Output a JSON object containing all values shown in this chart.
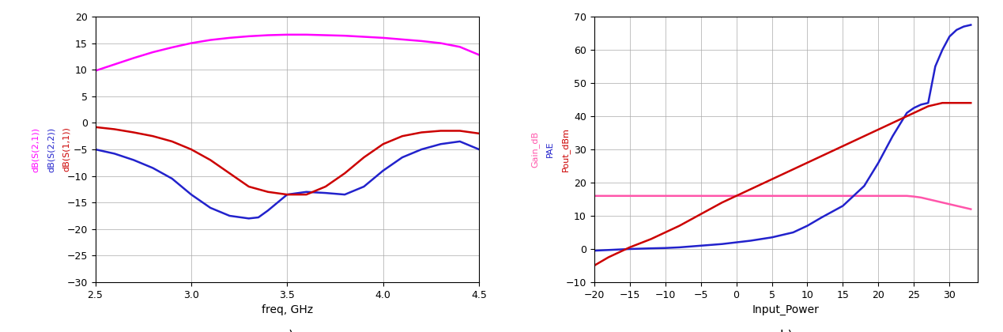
{
  "plot_a": {
    "xlabel": "freq, GHz",
    "xlim": [
      2.5,
      4.5
    ],
    "ylim": [
      -30,
      20
    ],
    "yticks": [
      -30,
      -25,
      -20,
      -15,
      -10,
      -5,
      0,
      5,
      10,
      15,
      20
    ],
    "xticks": [
      2.5,
      3.0,
      3.5,
      4.0,
      4.5
    ],
    "legend": [
      "dB(S(2,1))",
      "dB(S(2,2))",
      "dB(S(1,1))"
    ],
    "legend_colors": [
      "#ff00ff",
      "#2222cc",
      "#cc0000"
    ],
    "s21": {
      "x": [
        2.5,
        2.6,
        2.7,
        2.8,
        2.9,
        3.0,
        3.1,
        3.2,
        3.3,
        3.4,
        3.5,
        3.6,
        3.7,
        3.8,
        3.9,
        4.0,
        4.1,
        4.2,
        4.3,
        4.4,
        4.5
      ],
      "y": [
        9.8,
        11.0,
        12.2,
        13.3,
        14.2,
        15.0,
        15.6,
        16.0,
        16.3,
        16.5,
        16.6,
        16.6,
        16.5,
        16.4,
        16.2,
        16.0,
        15.7,
        15.4,
        15.0,
        14.3,
        12.8
      ],
      "color": "#ff00ff",
      "linewidth": 1.8
    },
    "s22": {
      "x": [
        2.5,
        2.6,
        2.7,
        2.8,
        2.9,
        3.0,
        3.1,
        3.2,
        3.3,
        3.35,
        3.4,
        3.5,
        3.6,
        3.7,
        3.8,
        3.9,
        4.0,
        4.1,
        4.2,
        4.3,
        4.4,
        4.5
      ],
      "y": [
        -5.0,
        -5.8,
        -7.0,
        -8.5,
        -10.5,
        -13.5,
        -16.0,
        -17.5,
        -18.0,
        -17.8,
        -16.5,
        -13.5,
        -13.0,
        -13.2,
        -13.5,
        -12.0,
        -9.0,
        -6.5,
        -5.0,
        -4.0,
        -3.5,
        -5.0
      ],
      "color": "#2222cc",
      "linewidth": 1.8
    },
    "s11": {
      "x": [
        2.5,
        2.6,
        2.7,
        2.8,
        2.9,
        3.0,
        3.1,
        3.2,
        3.3,
        3.4,
        3.5,
        3.6,
        3.7,
        3.8,
        3.9,
        4.0,
        4.1,
        4.2,
        4.3,
        4.4,
        4.5
      ],
      "y": [
        -0.8,
        -1.2,
        -1.8,
        -2.5,
        -3.5,
        -5.0,
        -7.0,
        -9.5,
        -12.0,
        -13.0,
        -13.5,
        -13.5,
        -12.0,
        -9.5,
        -6.5,
        -4.0,
        -2.5,
        -1.8,
        -1.5,
        -1.5,
        -2.0
      ],
      "color": "#cc0000",
      "linewidth": 1.8
    }
  },
  "plot_b": {
    "xlabel": "Input_Power",
    "xlim": [
      -20,
      34
    ],
    "ylim": [
      -10,
      70
    ],
    "yticks": [
      -10,
      0,
      10,
      20,
      30,
      40,
      50,
      60,
      70
    ],
    "xticks": [
      -20,
      -15,
      -10,
      -5,
      0,
      5,
      10,
      15,
      20,
      25,
      30
    ],
    "legend": [
      "Gain_dB",
      "PAE",
      "Pout_dBm"
    ],
    "legend_colors": [
      "#ff55aa",
      "#2222cc",
      "#cc0000"
    ],
    "gain": {
      "x": [
        -20,
        -18,
        -15,
        -12,
        -10,
        -8,
        -5,
        -2,
        0,
        2,
        5,
        8,
        10,
        12,
        15,
        18,
        20,
        22,
        24,
        25,
        26,
        27,
        28,
        29,
        30,
        31,
        32,
        33
      ],
      "y": [
        16.0,
        16.0,
        16.0,
        16.0,
        16.0,
        16.0,
        16.0,
        16.0,
        16.0,
        16.0,
        16.0,
        16.0,
        16.0,
        16.0,
        16.0,
        16.0,
        16.0,
        16.0,
        16.0,
        15.8,
        15.5,
        15.0,
        14.5,
        14.0,
        13.5,
        13.0,
        12.5,
        12.0
      ],
      "color": "#ff55aa",
      "linewidth": 1.8
    },
    "pae": {
      "x": [
        -20,
        -18,
        -15,
        -12,
        -10,
        -8,
        -5,
        -2,
        0,
        2,
        5,
        8,
        10,
        12,
        15,
        18,
        20,
        22,
        24,
        25,
        26,
        27,
        28,
        29,
        30,
        31,
        32,
        33
      ],
      "y": [
        -0.5,
        -0.3,
        0.0,
        0.2,
        0.3,
        0.5,
        1.0,
        1.5,
        2.0,
        2.5,
        3.5,
        5.0,
        7.0,
        9.5,
        13.0,
        19.0,
        26.0,
        34.0,
        41.0,
        42.5,
        43.5,
        44.0,
        55.0,
        60.0,
        64.0,
        66.0,
        67.0,
        67.5
      ],
      "color": "#2222cc",
      "linewidth": 1.8
    },
    "pout": {
      "x": [
        -20,
        -18,
        -15,
        -12,
        -10,
        -8,
        -5,
        -2,
        0,
        2,
        5,
        8,
        10,
        12,
        15,
        18,
        20,
        22,
        24,
        25,
        26,
        27,
        28,
        29,
        30,
        31,
        32,
        33
      ],
      "y": [
        -5.0,
        -2.5,
        0.5,
        3.0,
        5.0,
        7.0,
        10.5,
        14.0,
        16.0,
        18.0,
        21.0,
        24.0,
        26.0,
        28.0,
        31.0,
        34.0,
        36.0,
        38.0,
        40.0,
        41.0,
        42.0,
        43.0,
        43.5,
        44.0,
        44.0,
        44.0,
        44.0,
        44.0
      ],
      "color": "#cc0000",
      "linewidth": 1.8
    }
  },
  "background_color": "#ffffff",
  "grid_color": "#aaaaaa"
}
